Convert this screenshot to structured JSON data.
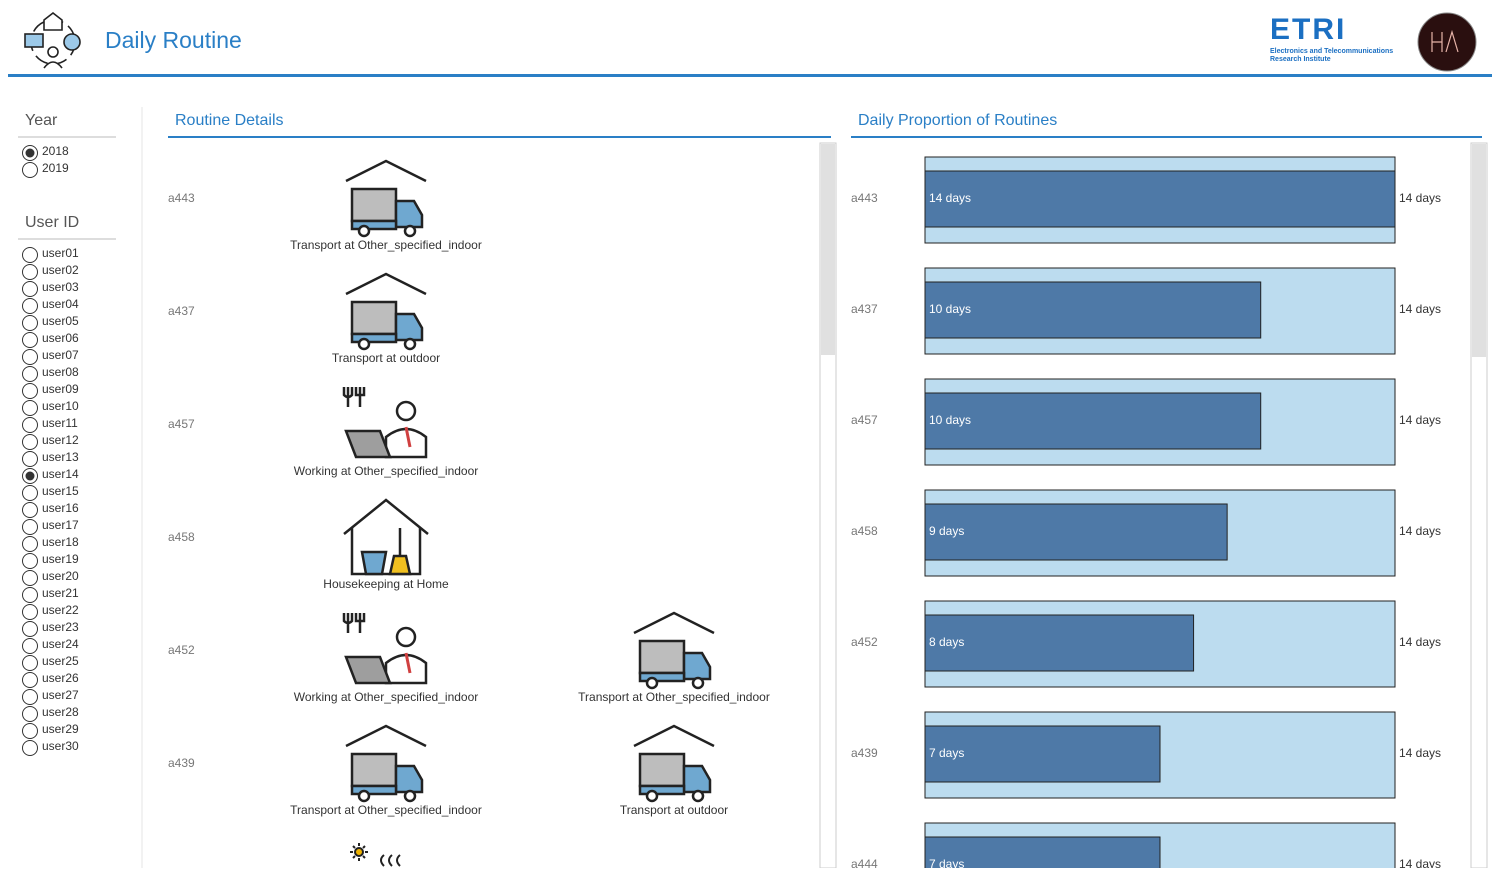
{
  "header": {
    "title": "Daily Routine",
    "logo_text": "ETRI",
    "logo_subtitle_1": "Electronics and Telecommunications",
    "logo_subtitle_2": "Research Institute"
  },
  "filters": {
    "year": {
      "label": "Year",
      "options": [
        "2018",
        "2019"
      ],
      "selected": "2018"
    },
    "user": {
      "label": "User ID",
      "options": [
        "user01",
        "user02",
        "user03",
        "user04",
        "user05",
        "user06",
        "user07",
        "user08",
        "user09",
        "user10",
        "user11",
        "user12",
        "user13",
        "user14",
        "user15",
        "user16",
        "user17",
        "user18",
        "user19",
        "user20",
        "user21",
        "user22",
        "user23",
        "user24",
        "user25",
        "user26",
        "user27",
        "user28",
        "user29",
        "user30"
      ],
      "selected": "user14"
    }
  },
  "routine_details": {
    "title": "Routine Details",
    "rows": [
      {
        "code": "a443",
        "activities": [
          "Transport at Other_specified_indoor"
        ]
      },
      {
        "code": "a437",
        "activities": [
          "Transport at outdoor"
        ]
      },
      {
        "code": "a457",
        "activities": [
          "Working at Other_specified_indoor"
        ]
      },
      {
        "code": "a458",
        "activities": [
          "Housekeeping at Home"
        ]
      },
      {
        "code": "a452",
        "activities": [
          "Working at Other_specified_indoor",
          "Transport at Other_specified_indoor"
        ]
      },
      {
        "code": "a439",
        "activities": [
          "Transport at Other_specified_indoor",
          "Transport at outdoor"
        ]
      },
      {
        "code": "a444",
        "activities": []
      }
    ]
  },
  "proportion_chart": {
    "type": "bar",
    "title": "Daily Proportion of Routines",
    "categories": [
      "a443",
      "a437",
      "a457",
      "a458",
      "a452",
      "a439",
      "a444"
    ],
    "values": [
      14,
      10,
      10,
      9,
      8,
      7,
      7
    ],
    "value_labels": [
      "14 days",
      "10 days",
      "10 days",
      "9 days",
      "8 days",
      "7 days",
      "7 days"
    ],
    "totals": [
      14,
      14,
      14,
      14,
      14,
      14,
      14
    ],
    "total_labels": [
      "14 days",
      "14 days",
      "14 days",
      "14 days",
      "14 days",
      "14 days",
      "14 days"
    ],
    "color": "#4e79a7",
    "total_color": "#bcdcef"
  }
}
